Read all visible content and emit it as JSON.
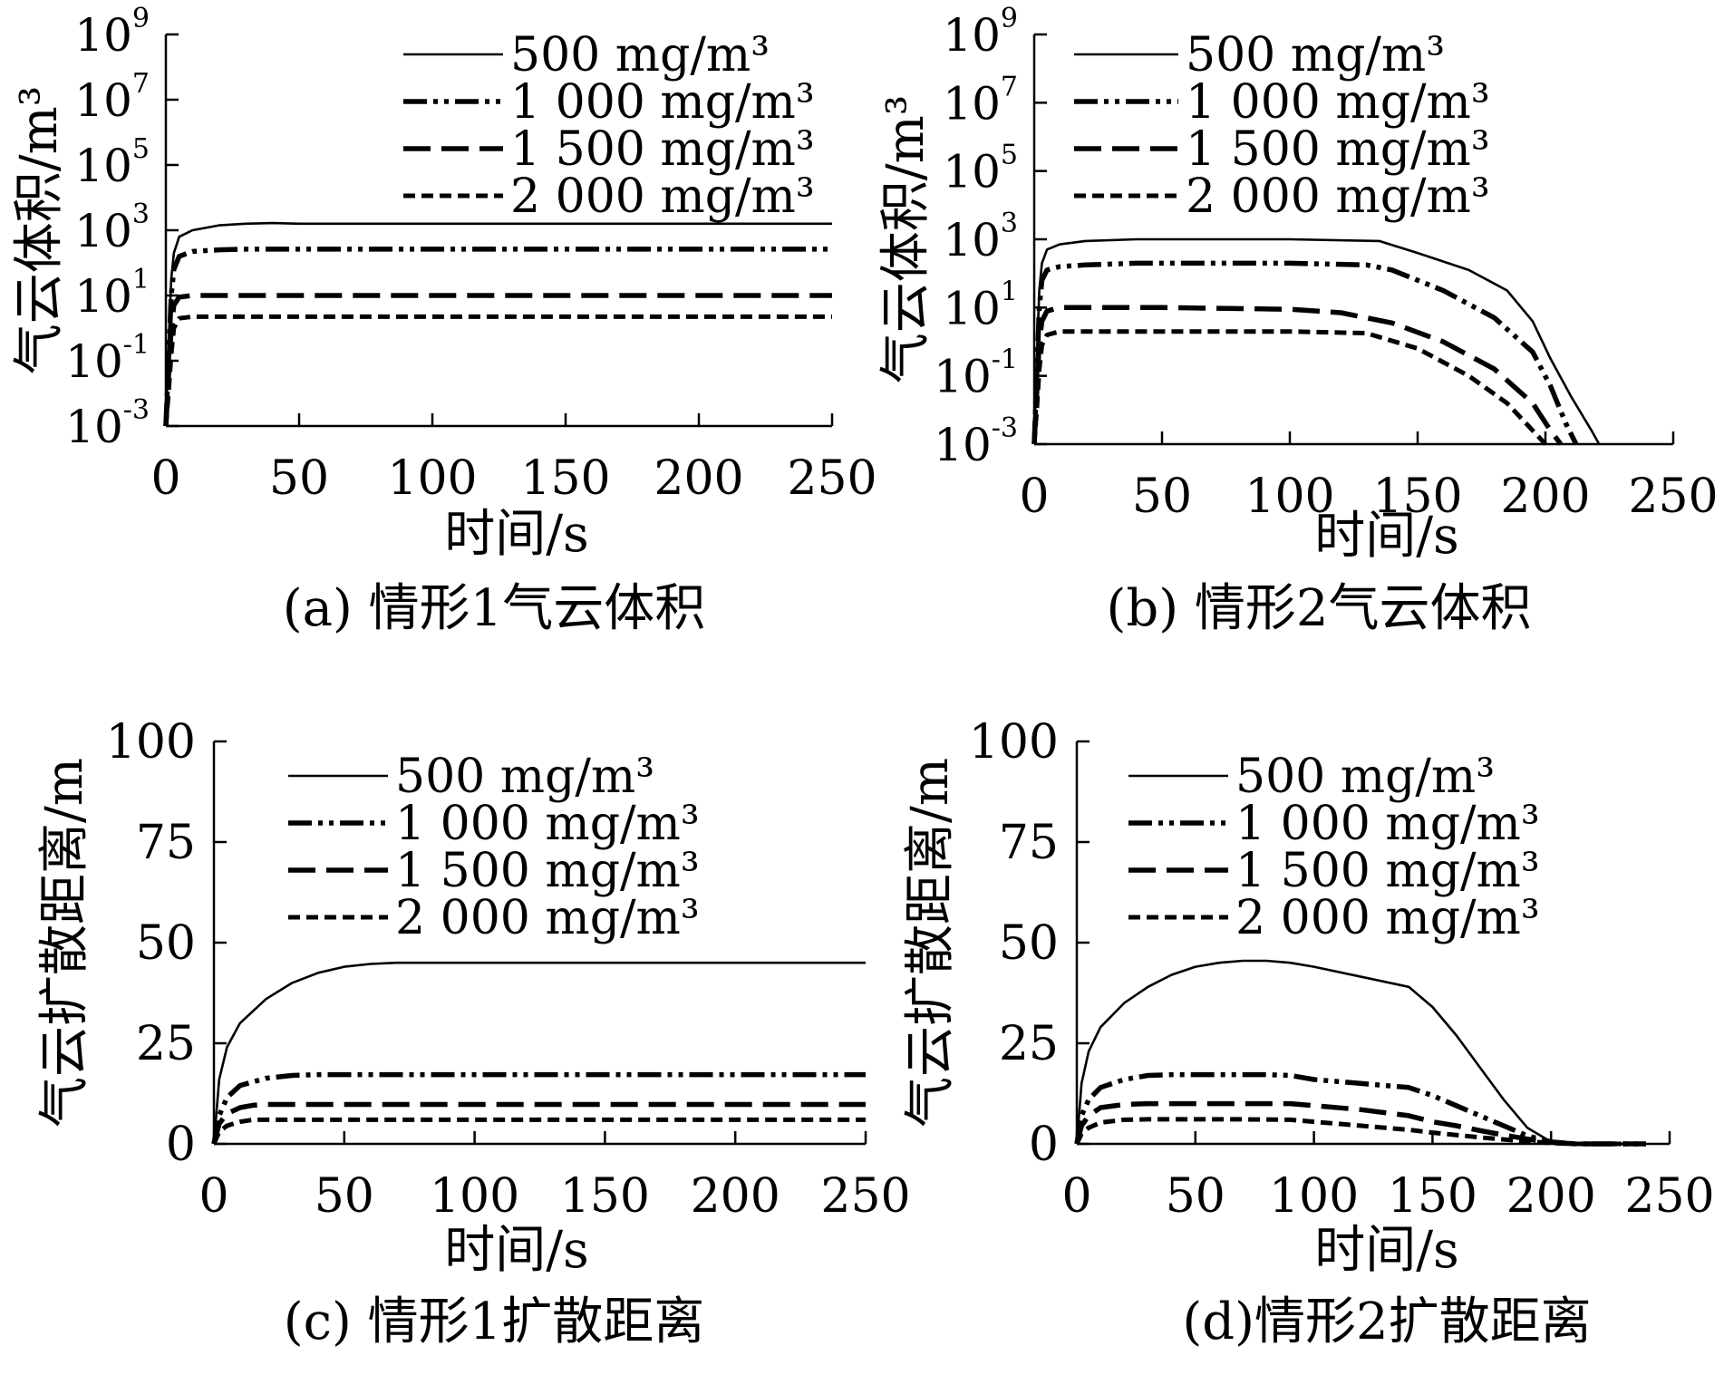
{
  "figure": {
    "xlabel": "时间/s"
  },
  "chart_data": [
    {
      "id": "a",
      "type": "line",
      "caption": "(a) 情形1气云体积",
      "ylabel": "气云体积/m³",
      "xlabel": "时间/s",
      "yscale": "log",
      "xlim": [
        0,
        250
      ],
      "ylim_log10": [
        -3,
        9
      ],
      "xticks": [
        "0",
        "50",
        "100",
        "150",
        "200",
        "250"
      ],
      "yticks": [
        {
          "base": "10",
          "exp": "-3",
          "v": -3
        },
        {
          "base": "10",
          "exp": "-1",
          "v": -1
        },
        {
          "base": "10",
          "exp": "1",
          "v": 1
        },
        {
          "base": "10",
          "exp": "3",
          "v": 3
        },
        {
          "base": "10",
          "exp": "5",
          "v": 5
        },
        {
          "base": "10",
          "exp": "7",
          "v": 7
        },
        {
          "base": "10",
          "exp": "9",
          "v": 9
        }
      ],
      "legend_position": "top-right",
      "grid": false,
      "series": [
        {
          "name": "500 mg/m³",
          "style": "solid",
          "x": [
            0,
            1,
            2,
            3,
            5,
            10,
            20,
            30,
            40,
            50,
            100,
            150,
            200,
            250
          ],
          "y": [
            -3,
            -0.5,
            1.5,
            2.3,
            2.8,
            3.0,
            3.15,
            3.2,
            3.22,
            3.2,
            3.2,
            3.2,
            3.2,
            3.2
          ]
        },
        {
          "name": "1 000 mg/m³",
          "style": "dashdotdot",
          "x": [
            0,
            1,
            2,
            3,
            5,
            10,
            20,
            30,
            50,
            100,
            150,
            200,
            250
          ],
          "y": [
            -3,
            -1,
            1,
            1.8,
            2.2,
            2.35,
            2.4,
            2.42,
            2.42,
            2.42,
            2.42,
            2.42,
            2.42
          ]
        },
        {
          "name": "1 500 mg/m³",
          "style": "longdash",
          "x": [
            0,
            1,
            2,
            3,
            5,
            10,
            20,
            50,
            100,
            150,
            200,
            250
          ],
          "y": [
            -3,
            -1.5,
            0,
            0.7,
            0.95,
            1.0,
            1.0,
            1.0,
            1.0,
            1.0,
            1.0,
            1.0
          ]
        },
        {
          "name": "2 000 mg/m³",
          "style": "shortdash",
          "x": [
            0,
            1,
            2,
            3,
            5,
            10,
            20,
            50,
            100,
            150,
            200,
            250
          ],
          "y": [
            -3,
            -2,
            -0.8,
            0,
            0.3,
            0.35,
            0.35,
            0.35,
            0.35,
            0.35,
            0.35,
            0.35
          ]
        }
      ]
    },
    {
      "id": "b",
      "type": "line",
      "caption": "(b) 情形2气云体积",
      "ylabel": "气云体积/m³",
      "xlabel": "时间/s",
      "yscale": "log",
      "xlim": [
        0,
        250
      ],
      "ylim_log10": [
        -3,
        9
      ],
      "xticks": [
        "0",
        "50",
        "100",
        "150",
        "200",
        "250"
      ],
      "yticks": [
        {
          "base": "10",
          "exp": "-3",
          "v": -3
        },
        {
          "base": "10",
          "exp": "-1",
          "v": -1
        },
        {
          "base": "10",
          "exp": "1",
          "v": 1
        },
        {
          "base": "10",
          "exp": "3",
          "v": 3
        },
        {
          "base": "10",
          "exp": "5",
          "v": 5
        },
        {
          "base": "10",
          "exp": "7",
          "v": 7
        },
        {
          "base": "10",
          "exp": "9",
          "v": 9
        }
      ],
      "legend_position": "top-right",
      "grid": false,
      "series": [
        {
          "name": "500 mg/m³",
          "style": "solid",
          "x": [
            0,
            1,
            2,
            3,
            5,
            10,
            20,
            40,
            60,
            100,
            135,
            150,
            170,
            185,
            195,
            202,
            210,
            218,
            221
          ],
          "y": [
            -3,
            -0.5,
            1.5,
            2.3,
            2.7,
            2.85,
            2.95,
            3.0,
            3.0,
            3.0,
            2.95,
            2.6,
            2.1,
            1.5,
            0.6,
            -0.5,
            -1.6,
            -2.6,
            -3
          ]
        },
        {
          "name": "1 000 mg/m³",
          "style": "dashdotdot",
          "x": [
            0,
            1,
            2,
            3,
            5,
            10,
            20,
            40,
            60,
            100,
            130,
            140,
            160,
            180,
            195,
            202,
            208,
            212
          ],
          "y": [
            -3,
            -1,
            1,
            1.8,
            2.1,
            2.2,
            2.25,
            2.3,
            2.3,
            2.3,
            2.25,
            2.1,
            1.5,
            0.7,
            -0.3,
            -1.3,
            -2.4,
            -3
          ]
        },
        {
          "name": "1 500 mg/m³",
          "style": "longdash",
          "x": [
            0,
            1,
            2,
            3,
            5,
            10,
            20,
            50,
            100,
            120,
            140,
            160,
            180,
            195,
            202,
            206
          ],
          "y": [
            -3,
            -1.5,
            0,
            0.6,
            0.9,
            1.0,
            1.0,
            1.0,
            0.95,
            0.85,
            0.55,
            0.0,
            -0.8,
            -1.8,
            -2.6,
            -3
          ]
        },
        {
          "name": "2 000 mg/m³",
          "style": "shortdash",
          "x": [
            0,
            1,
            2,
            3,
            5,
            10,
            20,
            50,
            100,
            130,
            150,
            170,
            185,
            195,
            200
          ],
          "y": [
            -3,
            -2,
            -0.8,
            -0.1,
            0.2,
            0.3,
            0.3,
            0.3,
            0.3,
            0.25,
            -0.2,
            -1.0,
            -1.8,
            -2.6,
            -3
          ]
        }
      ]
    },
    {
      "id": "c",
      "type": "line",
      "caption": "(c) 情形1扩散距离",
      "ylabel": "气云扩散距离/m",
      "xlabel": "时间/s",
      "yscale": "linear",
      "xlim": [
        0,
        250
      ],
      "ylim": [
        0,
        100
      ],
      "xticks": [
        "0",
        "50",
        "100",
        "150",
        "200",
        "250"
      ],
      "yticks": [
        "0",
        "25",
        "50",
        "75",
        "100"
      ],
      "legend_position": "top-right",
      "grid": false,
      "series": [
        {
          "name": "500 mg/m³",
          "style": "solid",
          "x": [
            0,
            2,
            5,
            10,
            20,
            30,
            40,
            50,
            60,
            70,
            80,
            100,
            150,
            200,
            250
          ],
          "y": [
            0,
            16,
            24,
            30,
            36,
            40,
            42.5,
            44,
            44.7,
            45,
            45,
            45,
            45,
            45,
            45
          ]
        },
        {
          "name": "1 000 mg/m³",
          "style": "dashdotdot",
          "x": [
            0,
            2,
            5,
            10,
            20,
            30,
            40,
            50,
            100,
            150,
            200,
            250
          ],
          "y": [
            0,
            7,
            11.5,
            14.5,
            16.3,
            17,
            17.2,
            17.2,
            17.2,
            17.2,
            17.2,
            17.2
          ]
        },
        {
          "name": "1 500 mg/m³",
          "style": "longdash",
          "x": [
            0,
            2,
            5,
            10,
            15,
            20,
            50,
            100,
            150,
            200,
            250
          ],
          "y": [
            0,
            5,
            7.5,
            9,
            9.6,
            9.8,
            9.8,
            9.8,
            9.8,
            9.8,
            9.8
          ]
        },
        {
          "name": "2 000 mg/m³",
          "style": "shortdash",
          "x": [
            0,
            2,
            5,
            10,
            15,
            20,
            50,
            100,
            150,
            200,
            250
          ],
          "y": [
            0,
            3,
            4.5,
            5.5,
            6,
            6,
            6,
            6,
            6,
            6,
            6
          ]
        }
      ]
    },
    {
      "id": "d",
      "type": "line",
      "caption": "(d)情形2扩散距离",
      "ylabel": "气云扩散距离/m",
      "xlabel": "时间/s",
      "yscale": "linear",
      "xlim": [
        0,
        250
      ],
      "ylim": [
        0,
        100
      ],
      "xticks": [
        "0",
        "50",
        "100",
        "150",
        "200",
        "250"
      ],
      "yticks": [
        "0",
        "25",
        "50",
        "75",
        "100"
      ],
      "legend_position": "top-right",
      "grid": false,
      "series": [
        {
          "name": "500 mg/m³",
          "style": "solid",
          "x": [
            0,
            2,
            5,
            10,
            20,
            30,
            40,
            50,
            60,
            70,
            80,
            90,
            100,
            120,
            140,
            150,
            160,
            170,
            180,
            190,
            200,
            210,
            240
          ],
          "y": [
            0,
            15,
            23,
            29,
            35,
            39,
            42,
            44,
            45,
            45.5,
            45.5,
            45,
            44,
            41.5,
            39,
            34,
            27,
            19,
            11,
            4,
            0.5,
            0,
            0
          ]
        },
        {
          "name": "1 000 mg/m³",
          "style": "dashdotdot",
          "x": [
            0,
            2,
            5,
            10,
            20,
            30,
            40,
            50,
            60,
            70,
            80,
            90,
            100,
            120,
            140,
            150,
            160,
            170,
            180,
            190,
            200,
            210,
            240
          ],
          "y": [
            0,
            7,
            11,
            14,
            16,
            17,
            17.2,
            17.2,
            17.2,
            17.2,
            17.2,
            17,
            16,
            15,
            14,
            12,
            9.5,
            7,
            4.5,
            2,
            0.5,
            0,
            0
          ]
        },
        {
          "name": "1 500 mg/m³",
          "style": "longdash",
          "x": [
            0,
            2,
            5,
            10,
            20,
            30,
            50,
            70,
            90,
            100,
            120,
            140,
            150,
            160,
            170,
            180,
            190,
            200,
            210,
            240
          ],
          "y": [
            0,
            4.5,
            7,
            9,
            9.8,
            10,
            10,
            10,
            10,
            9.5,
            8.5,
            7,
            5.5,
            4.5,
            3.3,
            2.2,
            1.2,
            0.4,
            0,
            0
          ]
        },
        {
          "name": "2 000 mg/m³",
          "style": "shortdash",
          "x": [
            0,
            2,
            5,
            10,
            20,
            30,
            50,
            70,
            90,
            100,
            120,
            140,
            150,
            160,
            170,
            180,
            190,
            200,
            210,
            240
          ],
          "y": [
            0,
            2.5,
            4,
            5.3,
            6,
            6.1,
            6.1,
            6.1,
            6,
            5.5,
            4.5,
            3.5,
            2.8,
            2.2,
            1.6,
            1.1,
            0.6,
            0.2,
            0,
            0
          ]
        }
      ]
    }
  ]
}
